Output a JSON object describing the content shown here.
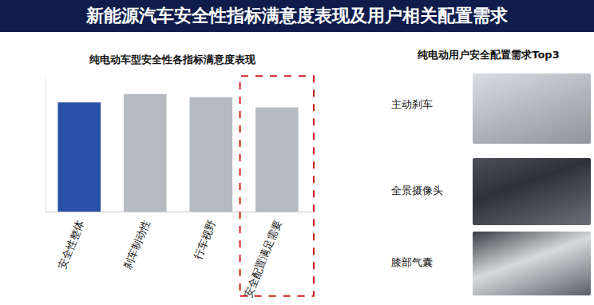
{
  "header": {
    "title": "新能源汽车安全性指标满意度表现及用户相关配置需求"
  },
  "chart_data": {
    "type": "bar",
    "title": "纯电动车型安全性各指标满意度表现",
    "categories": [
      "安全性整体",
      "刹车制动性",
      "行车视野",
      "安全配置满足需要"
    ],
    "values": [
      76.1,
      77.4,
      76.9,
      75.3
    ],
    "colors": [
      "#2b50a8",
      "#b6bbc2",
      "#b6bbc2",
      "#b6bbc2"
    ],
    "ylim": [
      59,
      80
    ],
    "yticks": [],
    "grid": false,
    "data_labels": true,
    "tick_labels": "x"
  },
  "side_panel": {
    "title": "纯电动用户安全配置需求Top3",
    "items": [
      "主动刹车",
      "全景摄像头",
      "膝部气囊"
    ]
  }
}
